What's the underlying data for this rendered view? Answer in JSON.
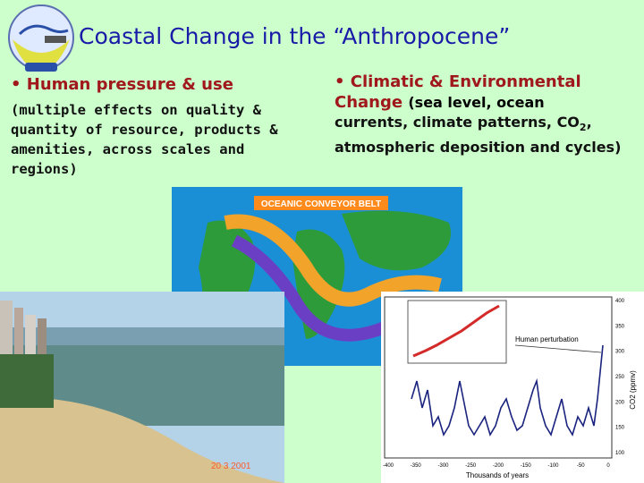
{
  "title": "Coastal Change in the “Anthropocene”",
  "left": {
    "heading": "• Human pressure & use",
    "body": "(multiple effects on quality & quantity of resource, products & amenities, across scales and regions)"
  },
  "right": {
    "heading": "• Climatic & Environmental Change",
    "heading_sub": "(sea level, ocean",
    "body_pre": "currents, climate patterns, CO",
    "body_sub": "2",
    "body_post": ", atmospheric deposition and cycles)"
  },
  "map": {
    "banner": "OCEANIC CONVEYOR BELT"
  },
  "photo": {
    "date_stamp": "20 3 2001"
  },
  "graph": {
    "xlabel": "Thousands of years",
    "annotation": "Human perturbation",
    "ylabel": "CO2 (ppmv)",
    "x_ticks": [
      "-400",
      "-350",
      "-300",
      "-250",
      "-200",
      "-150",
      "-100",
      "-50",
      "0"
    ],
    "y_ticks": [
      "400",
      "350",
      "300",
      "250",
      "200",
      "150",
      "100"
    ]
  },
  "colors": {
    "background": "#ccffcc",
    "title": "#1a1aa8",
    "heading": "#a0171c"
  }
}
